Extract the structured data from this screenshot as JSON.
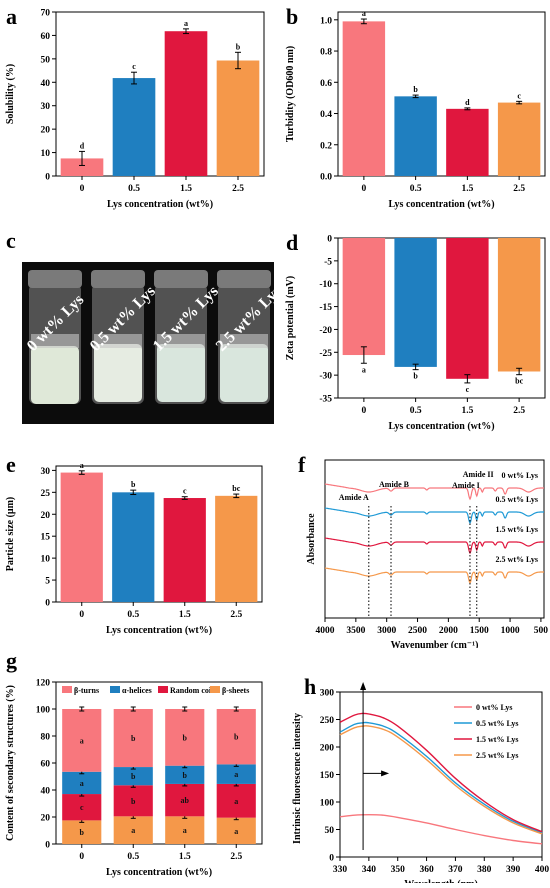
{
  "panels": {
    "a": {
      "letter": "a",
      "chart_data": {
        "type": "bar",
        "categories": [
          "0",
          "0.5",
          "1.5",
          "2.5"
        ],
        "values": [
          7.5,
          41.8,
          61.8,
          49.3
        ],
        "errors": [
          3.0,
          2.5,
          1.0,
          3.5
        ],
        "letters": [
          "d",
          "c",
          "a",
          "b"
        ],
        "colors": [
          "#F8777D",
          "#1F7FC0",
          "#E0173E",
          "#F5984A"
        ],
        "xlabel": "Lys concentration (wt%)",
        "ylabel": "Solubility (%)",
        "ylim": [
          0,
          70
        ],
        "yticks": [
          0,
          10,
          20,
          30,
          40,
          50,
          60,
          70
        ]
      }
    },
    "b": {
      "letter": "b",
      "chart_data": {
        "type": "bar",
        "categories": [
          "0",
          "0.5",
          "1.5",
          "2.5"
        ],
        "values": [
          0.99,
          0.51,
          0.43,
          0.47
        ],
        "errors": [
          0.015,
          0.008,
          0.006,
          0.008
        ],
        "letters": [
          "a",
          "b",
          "d",
          "c"
        ],
        "colors": [
          "#F8777D",
          "#1F7FC0",
          "#E0173E",
          "#F5984A"
        ],
        "xlabel": "Lys concentration (wt%)",
        "ylabel": "Turbidity (OD600 nm)",
        "ylim": [
          0.0,
          1.05
        ],
        "yticks": [
          0.0,
          0.2,
          0.4,
          0.6,
          0.8,
          1.0
        ]
      }
    },
    "c": {
      "letter": "c",
      "vials": [
        "0 wt% Lys",
        "0.5 wt% Lys",
        "1.5 wt% Lys",
        "2.5 wt% Lys"
      ]
    },
    "d": {
      "letter": "d",
      "chart_data": {
        "type": "bar",
        "categories": [
          "0",
          "0.5",
          "1.5",
          "2.5"
        ],
        "values": [
          -25.6,
          -28.2,
          -30.8,
          -29.2
        ],
        "errors": [
          1.8,
          0.6,
          0.9,
          0.7
        ],
        "letters": [
          "a",
          "b",
          "c",
          "bc"
        ],
        "colors": [
          "#F8777D",
          "#1F7FC0",
          "#E0173E",
          "#F5984A"
        ],
        "xlabel": "Lys concentration (wt%)",
        "ylabel": "Zeta potential (mV)",
        "ylim": [
          -35,
          0
        ],
        "yticks": [
          0,
          -5,
          -10,
          -15,
          -20,
          -25,
          -30,
          -35
        ]
      }
    },
    "e": {
      "letter": "e",
      "chart_data": {
        "type": "bar",
        "categories": [
          "0",
          "0.5",
          "1.5",
          "2.5"
        ],
        "values": [
          29.5,
          25.0,
          23.7,
          24.2
        ],
        "errors": [
          0.4,
          0.5,
          0.3,
          0.4
        ],
        "letters": [
          "a",
          "b",
          "c",
          "bc"
        ],
        "colors": [
          "#F8777D",
          "#1F7FC0",
          "#E0173E",
          "#F5984A"
        ],
        "xlabel": "Lys concentration (wt%)",
        "ylabel": "Particle size (μm)",
        "ylim": [
          0,
          31
        ],
        "yticks": [
          0,
          5,
          10,
          15,
          20,
          25,
          30
        ]
      }
    },
    "f": {
      "letter": "f",
      "chart_data": {
        "type": "line",
        "xlabel": "Wavenumber (cm⁻¹)",
        "ylabel": "Absorbance",
        "xlim": [
          4000,
          450
        ],
        "xticks": [
          4000,
          3500,
          3000,
          2500,
          2000,
          1500,
          1000,
          500
        ],
        "annotations": [
          "Amide A",
          "Amide B",
          "Amide II",
          "Amide I"
        ],
        "annotation_x": [
          3290,
          2930,
          1540,
          1650
        ],
        "series": [
          {
            "name": "0 wt% Lys",
            "color": "#F8777D"
          },
          {
            "name": "0.5 wt% Lys",
            "color": "#1F9AD6"
          },
          {
            "name": "1.5 wt% Lys",
            "color": "#E0173E"
          },
          {
            "name": "2.5 wt% Lys",
            "color": "#F5984A"
          }
        ]
      }
    },
    "g": {
      "letter": "g",
      "chart_data": {
        "type": "bar",
        "stacked": true,
        "categories": [
          "0",
          "0.5",
          "1.5",
          "2.5"
        ],
        "xlabel": "Lys concentration (wt%)",
        "ylabel": "Content of secondary structures (%)",
        "ylim": [
          0,
          120
        ],
        "yticks": [
          0,
          20,
          40,
          60,
          80,
          100,
          120
        ],
        "series": [
          {
            "name": "β-sheets",
            "color": "#F5984A",
            "values": [
              17.5,
              20.5,
              20.5,
              19.5
            ],
            "letters": [
              "b",
              "a",
              "a",
              "a"
            ]
          },
          {
            "name": "Random coils",
            "color": "#E0173E",
            "values": [
              19.5,
              23.0,
              24.0,
              25.0
            ],
            "letters": [
              "c",
              "b",
              "ab",
              "a"
            ]
          },
          {
            "name": "α-helices",
            "color": "#1F7FC0",
            "values": [
              16.5,
              13.5,
              13.5,
              14.5
            ],
            "letters": [
              "a",
              "b",
              "b",
              "a"
            ]
          },
          {
            "name": "β-turns",
            "color": "#F8777D",
            "values": [
              46.5,
              43.0,
              42.0,
              41.0
            ],
            "letters": [
              "a",
              "b",
              "b",
              "b"
            ]
          }
        ],
        "legend_order": [
          "β-turns",
          "α-helices",
          "Random coils",
          "β-sheets"
        ]
      }
    },
    "h": {
      "letter": "h",
      "chart_data": {
        "type": "line",
        "xlabel": "Wavelength (nm)",
        "ylabel": "Intrinsic fluorescence intensity",
        "xlim": [
          330,
          400
        ],
        "ylim": [
          0,
          300
        ],
        "xticks": [
          330,
          340,
          350,
          360,
          370,
          380,
          390,
          400
        ],
        "yticks": [
          0,
          50,
          100,
          150,
          200,
          250,
          300
        ],
        "series": [
          {
            "name": "0 wt% Lys",
            "color": "#F8777D",
            "x": [
              330,
              335,
              340,
              345,
              350,
              360,
              370,
              380,
              390,
              400
            ],
            "y": [
              73,
              76,
              77,
              76,
              72,
              62,
              50,
              39,
              30,
              24
            ]
          },
          {
            "name": "0.5 wt% Lys",
            "color": "#1F9AD6",
            "x": [
              330,
              335,
              338,
              340,
              345,
              350,
              360,
              370,
              380,
              390,
              400
            ],
            "y": [
              227,
              241,
              244,
              244,
              238,
              224,
              183,
              135,
              96,
              65,
              44
            ]
          },
          {
            "name": "1.5 wt% Lys",
            "color": "#E0173E",
            "x": [
              330,
              335,
              338,
              340,
              345,
              350,
              360,
              370,
              380,
              390,
              400
            ],
            "y": [
              245,
              258,
              261,
              260,
              253,
              238,
              194,
              143,
              101,
              68,
              46
            ]
          },
          {
            "name": "2.5 wt% Lys",
            "color": "#F5984A",
            "x": [
              330,
              335,
              338,
              340,
              345,
              350,
              360,
              370,
              380,
              390,
              400
            ],
            "y": [
              222,
              235,
              238,
              238,
              232,
              218,
              177,
              130,
              92,
              62,
              42
            ]
          }
        ]
      }
    }
  }
}
